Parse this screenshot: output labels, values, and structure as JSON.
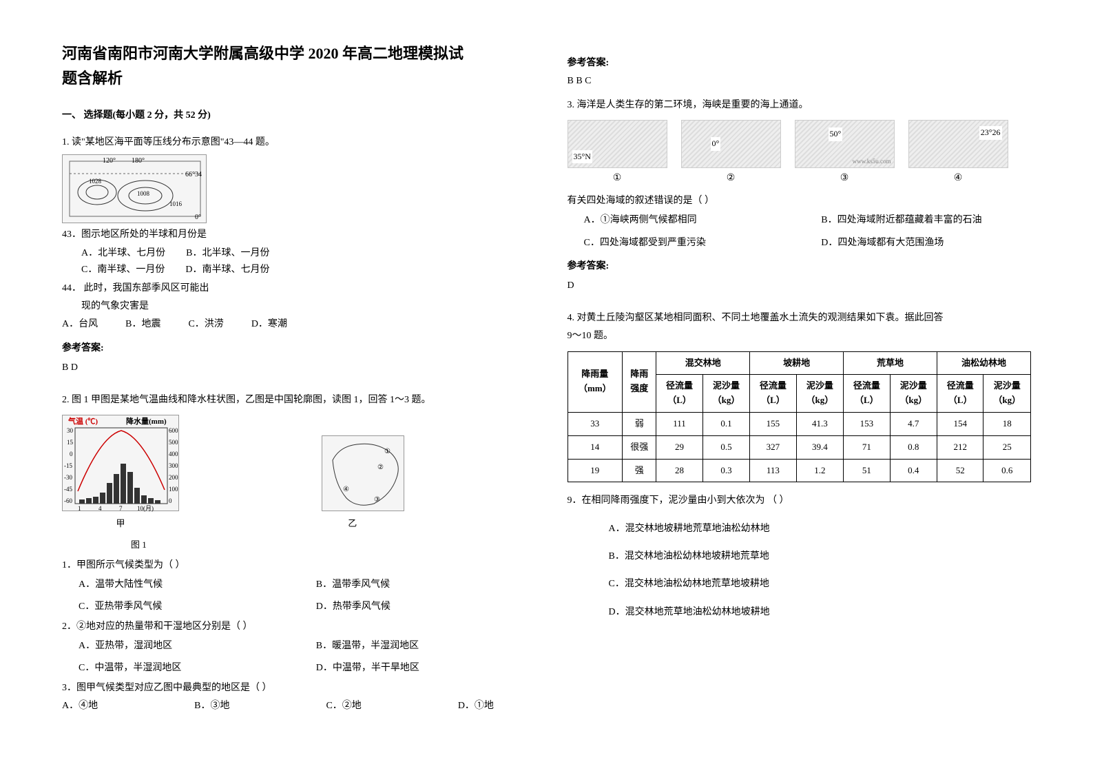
{
  "doc": {
    "title_line1": "河南省南阳市河南大学附属高级中学 2020 年高二地理模拟试",
    "title_line2": "题含解析",
    "section1_header": "一、 选择题(每小题 2 分，共 52 分)"
  },
  "q1": {
    "stem": "1. 读\"某地区海平面等压线分布示意图\"43—44 题。",
    "map_labels": {
      "lon1": "120°",
      "lon2": "180°",
      "lat1": "66°34",
      "lat2": "0°",
      "p1": "1028",
      "p2": "1008",
      "p3": "1016"
    },
    "sub43": "43．图示地区所处的半球和月份是",
    "sub43_opts": {
      "a": "A．北半球、七月份",
      "b": "B．北半球、一月份",
      "c": "C．南半球、一月份",
      "d": "D．南半球、七月份"
    },
    "sub44_l1": "44． 此时，我国东部季风区可能出",
    "sub44_l2": "现的气象灾害是",
    "sub44_opts": {
      "a": "A．台风",
      "b": "B．地震",
      "c": "C．洪涝",
      "d": "D．寒潮"
    },
    "answer_label": "参考答案:",
    "answer": "B  D"
  },
  "q2": {
    "stem": "2. 图 1 甲图是某地气温曲线和降水柱状图，乙图是中国轮廓图，读图 1，回答 1～3 题。",
    "chart_labels": {
      "ytemp": "气温 (℃)",
      "yprecip": "降水量(mm)"
    },
    "caption_jia": "甲",
    "caption_yi": "乙",
    "caption_fig": "图 1",
    "sub1": "1．甲图所示气候类型为（      ）",
    "sub1_opts": {
      "a": "A．温带大陆性气候",
      "b": "B．温带季风气候",
      "c": "C．亚热带季风气候",
      "d": "D．热带季风气候"
    },
    "sub2": "2．②地对应的热量带和干湿地区分别是（      ）",
    "sub2_opts": {
      "a": "A．亚热带，湿润地区",
      "b": "B．暖温带，半湿润地区",
      "c": "C．中温带，半湿润地区",
      "d": "D．中温带，半干旱地区"
    },
    "sub3": "3．图甲气候类型对应乙图中最典型的地区是（      ）",
    "sub3_opts": {
      "a": "A．④地",
      "b": "B．③地",
      "c": "C．②地",
      "d": "D．①地"
    }
  },
  "right": {
    "ans_label": "参考答案:",
    "ans2": "B B C"
  },
  "q3": {
    "stem": "3. 海洋是人类生存的第二环境，海峡是重要的海上通道。",
    "s_labels": {
      "s1": "①",
      "s2": "②",
      "s3": "③",
      "s4": "④",
      "s1txt": "35°N",
      "s2txt": "0°",
      "s3txt": "50°",
      "s4txt": "23°26",
      "watermark": "www.ks5u.com"
    },
    "question": "有关四处海域的叙述错误的是（         ）",
    "opts": {
      "a": "A．①海峡两侧气候都相同",
      "b": "B．四处海域附近都蕴藏着丰富的石油",
      "c": "C．四处海域都受到严重污染",
      "d": "D．四处海域都有大范围渔场"
    },
    "answer_label": "参考答案:",
    "answer": "D"
  },
  "q4": {
    "stem_l1": "4. 对黄土丘陵沟壑区某地相同面积、不同土地覆盖水土流失的观测结果如下袁。据此回答",
    "stem_l2": "9～10 题。",
    "table": {
      "cols_group": [
        "降雨量",
        "降雨",
        "混交林地",
        "坡耕地",
        "荒草地",
        "油松幼林地"
      ],
      "cols_sub": [
        "（mm）",
        "强度",
        "径流量",
        "泥沙量",
        "径流量",
        "泥沙量",
        "径流量",
        "泥沙量",
        "径流量",
        "泥沙量"
      ],
      "cols_unit": [
        "",
        "",
        "（L）",
        "（kg）",
        "（L）",
        "（kg）",
        "（L）",
        "（kg）",
        "（L）",
        "（kg）"
      ],
      "rows": [
        [
          "33",
          "弱",
          "111",
          "0.1",
          "155",
          "41.3",
          "153",
          "4.7",
          "154",
          "18"
        ],
        [
          "14",
          "很强",
          "29",
          "0.5",
          "327",
          "39.4",
          "71",
          "0.8",
          "212",
          "25"
        ],
        [
          "19",
          "强",
          "28",
          "0.3",
          "113",
          "1.2",
          "51",
          "0.4",
          "52",
          "0.6"
        ]
      ]
    },
    "sub9": "9．在相同降雨强度下，泥沙量由小到大依次为               （        ）",
    "sub9_opts": {
      "a": "A．混交林地坡耕地荒草地油松幼林地",
      "b": "B．混交林地油松幼林地坡耕地荒草地",
      "c": "C．混交林地油松幼林地荒草地坡耕地",
      "d": "D．混交林地荒草地油松幼林地坡耕地"
    }
  }
}
